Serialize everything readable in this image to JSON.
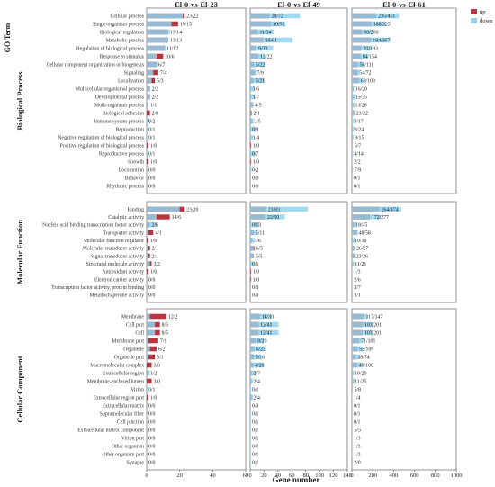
{
  "chart_data": {
    "type": "bar",
    "orientation": "horizontal",
    "stacking": "overlaid (down drawn over up, up drawn from 0)",
    "xlabel": "Gene number",
    "group_axis_title": "GO Term",
    "legend": {
      "position": "top-right",
      "entries": [
        {
          "name": "up",
          "color": "#b8343f"
        },
        {
          "name": "down",
          "color": "#8fd3f0"
        }
      ]
    },
    "colors": {
      "up": "#b8343f",
      "down": "#8fd3f0"
    },
    "panels": [
      {
        "title": "El-0-vs-El-23",
        "xlim": [
          0,
          60
        ],
        "ticks": [
          0,
          20,
          40,
          60
        ],
        "tick_labels": [
          "0",
          "20",
          "40",
          "60"
        ]
      },
      {
        "title": "El-0-vs-El-49",
        "xlim": [
          0,
          140
        ],
        "ticks": [
          0,
          20,
          40,
          60,
          80,
          100,
          120,
          140
        ],
        "tick_labels": [
          "0",
          "20",
          "40",
          "60",
          "80",
          "100",
          "120",
          "140"
        ]
      },
      {
        "title": "El-0-vs-El-61",
        "xlim": [
          0,
          1000
        ],
        "ticks": [
          0,
          200,
          400,
          600,
          800,
          1000
        ],
        "tick_labels": [
          "0",
          "200",
          "400",
          "600",
          "800",
          "1000"
        ]
      }
    ],
    "groups": [
      {
        "name": "Biological Process",
        "categories": [
          "Cellular process",
          "Single-organism process",
          "Biological regulation",
          "Metabolic process",
          "Regulation of biological process",
          "Response to stimulus",
          "Cellular component organization or biogenesis",
          "Signaling",
          "Localization",
          "Multicellular organismal process",
          "Developmental process",
          "Multi-organism process",
          "Biological adhesion",
          "Immune system process",
          "Reproduction",
          "Negative regulation of biological process",
          "Positive regulation of biological process",
          "Reproductive process",
          "Growth",
          "Locomotion",
          "Behavior",
          "Rhythmic process"
        ],
        "labels": [
          [
            "23/22",
            "19/15",
            "13/14",
            "13/13",
            "11/12",
            "10/6",
            "6/7",
            "7/4",
            "5/3",
            "2/2",
            "2/2",
            "1/1",
            "2/0",
            "0/2",
            "0/1",
            "0/1",
            "1/0",
            "0/1",
            "1/0",
            "0/0",
            "0/0",
            "0/0"
          ],
          [
            "28/72",
            "30/51",
            "11/34",
            "19/61",
            "9/33",
            "12/22",
            "5/22",
            "7/9",
            "5/21",
            "1/6",
            "1/7",
            "4/5",
            "2/1",
            "3/5",
            "0/8",
            "1/4",
            "1/0",
            "0/7",
            "1/0",
            "0/2",
            "0/0",
            "0/0"
          ],
          [
            "235/451",
            "188/325",
            "98/200",
            "184/367",
            "93/193",
            "84/154",
            "56/111",
            "54/72",
            "68/103",
            "16/20",
            "15/35",
            "13/26",
            "23/22",
            "3/17",
            "8/24",
            "9/15",
            "6/7",
            "4/14",
            "2/2",
            "7/9",
            "0/1",
            "0/1"
          ]
        ]
      },
      {
        "name": "Molecular Function",
        "categories": [
          "Binding",
          "Catalytic activity",
          "Nucleic acid binding transcription factor activity",
          "Transporter activity",
          "Molecular function regulator",
          "Molecular transducer activity",
          "Signal transducer activity",
          "Structural molecule activity",
          "Antioxidant activity",
          "Electron carrier activity",
          "Transcription factor activity, protein binding",
          "Metallochaperone activity"
        ],
        "labels": [
          [
            "23/20",
            "14/6",
            "2/6",
            "4/1",
            "1/0",
            "2/1",
            "2/1",
            "3/2",
            "1/0",
            "0/0",
            "0/0",
            "0/0"
          ],
          [
            "23/83",
            "22/50",
            "0/13",
            "5/11",
            "3/6",
            "6/5",
            "5/5",
            "0/6",
            "1/0",
            "1/0",
            "0/0",
            "0/0"
          ],
          [
            "264/474",
            "172/277",
            "18/45",
            "48/58",
            "10/30",
            "26/27",
            "23/26",
            "11/21",
            "1/3",
            "2/6",
            "3/7",
            "3/1"
          ]
        ]
      },
      {
        "name": "Cellular Component",
        "categories": [
          "Membrane",
          "Cell part",
          "Cell",
          "Membrane part",
          "Organelle",
          "Organelle part",
          "Macromolecular complex",
          "Extracellular region",
          "Membrane-enclosed lumen",
          "Virion",
          "Extracellular region part",
          "Extracellular matrix",
          "Supramolecular fiber",
          "Cell junction",
          "Extracellular matrix component",
          "Virion part",
          "Other organism",
          "Other organism part",
          "Synapse"
        ],
        "labels": [
          [
            "12/2",
            "8/5",
            "8/5",
            "7/1",
            "6/2",
            "5/1",
            "3/0",
            "1/2",
            "3/0",
            "0/1",
            "1/0",
            "0/0",
            "0/0",
            "0/0",
            "0/0",
            "0/0",
            "0/0",
            "0/0",
            "0/0"
          ],
          [
            "14/30",
            "12/41",
            "12/41",
            "8/20",
            "6/23",
            "5/16",
            "4/20",
            "2/7",
            "2/4",
            "0/1",
            "2/4",
            "0/0",
            "0/1",
            "0/1",
            "0/1",
            "0/1",
            "0/1",
            "0/1",
            "0/1"
          ],
          [
            "117/147",
            "103/201",
            "103/201",
            "71/101",
            "53/109",
            "38/74",
            "49/100",
            "10/20",
            "11/25",
            "5/8",
            "1/4",
            "0/1",
            "0/1",
            "0/1",
            "5/5",
            "1/3",
            "1/3",
            "1/3",
            "2/0"
          ]
        ]
      }
    ]
  }
}
